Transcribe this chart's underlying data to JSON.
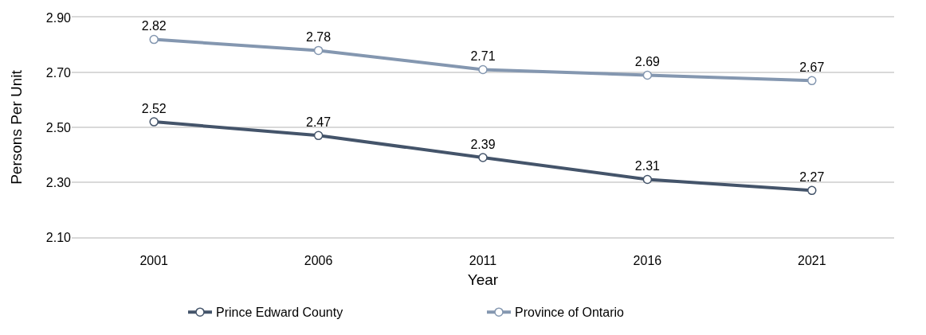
{
  "chart_data": {
    "type": "line",
    "xlabel": "Year",
    "ylabel": "Persons Per Unit",
    "categories": [
      "2001",
      "2006",
      "2011",
      "2016",
      "2021"
    ],
    "series": [
      {
        "name": "Prince Edward County",
        "color": "#44546a",
        "values": [
          2.52,
          2.47,
          2.39,
          2.31,
          2.27
        ]
      },
      {
        "name": "Province of Ontario",
        "color": "#8497b0",
        "values": [
          2.82,
          2.78,
          2.71,
          2.69,
          2.67
        ]
      }
    ],
    "ylim": [
      2.1,
      2.9
    ],
    "yticks": [
      "2.10",
      "2.30",
      "2.50",
      "2.70",
      "2.90"
    ],
    "data_labels": true,
    "grid": "y",
    "legend": "bottom",
    "marker": "circle",
    "line_style": "solid"
  }
}
